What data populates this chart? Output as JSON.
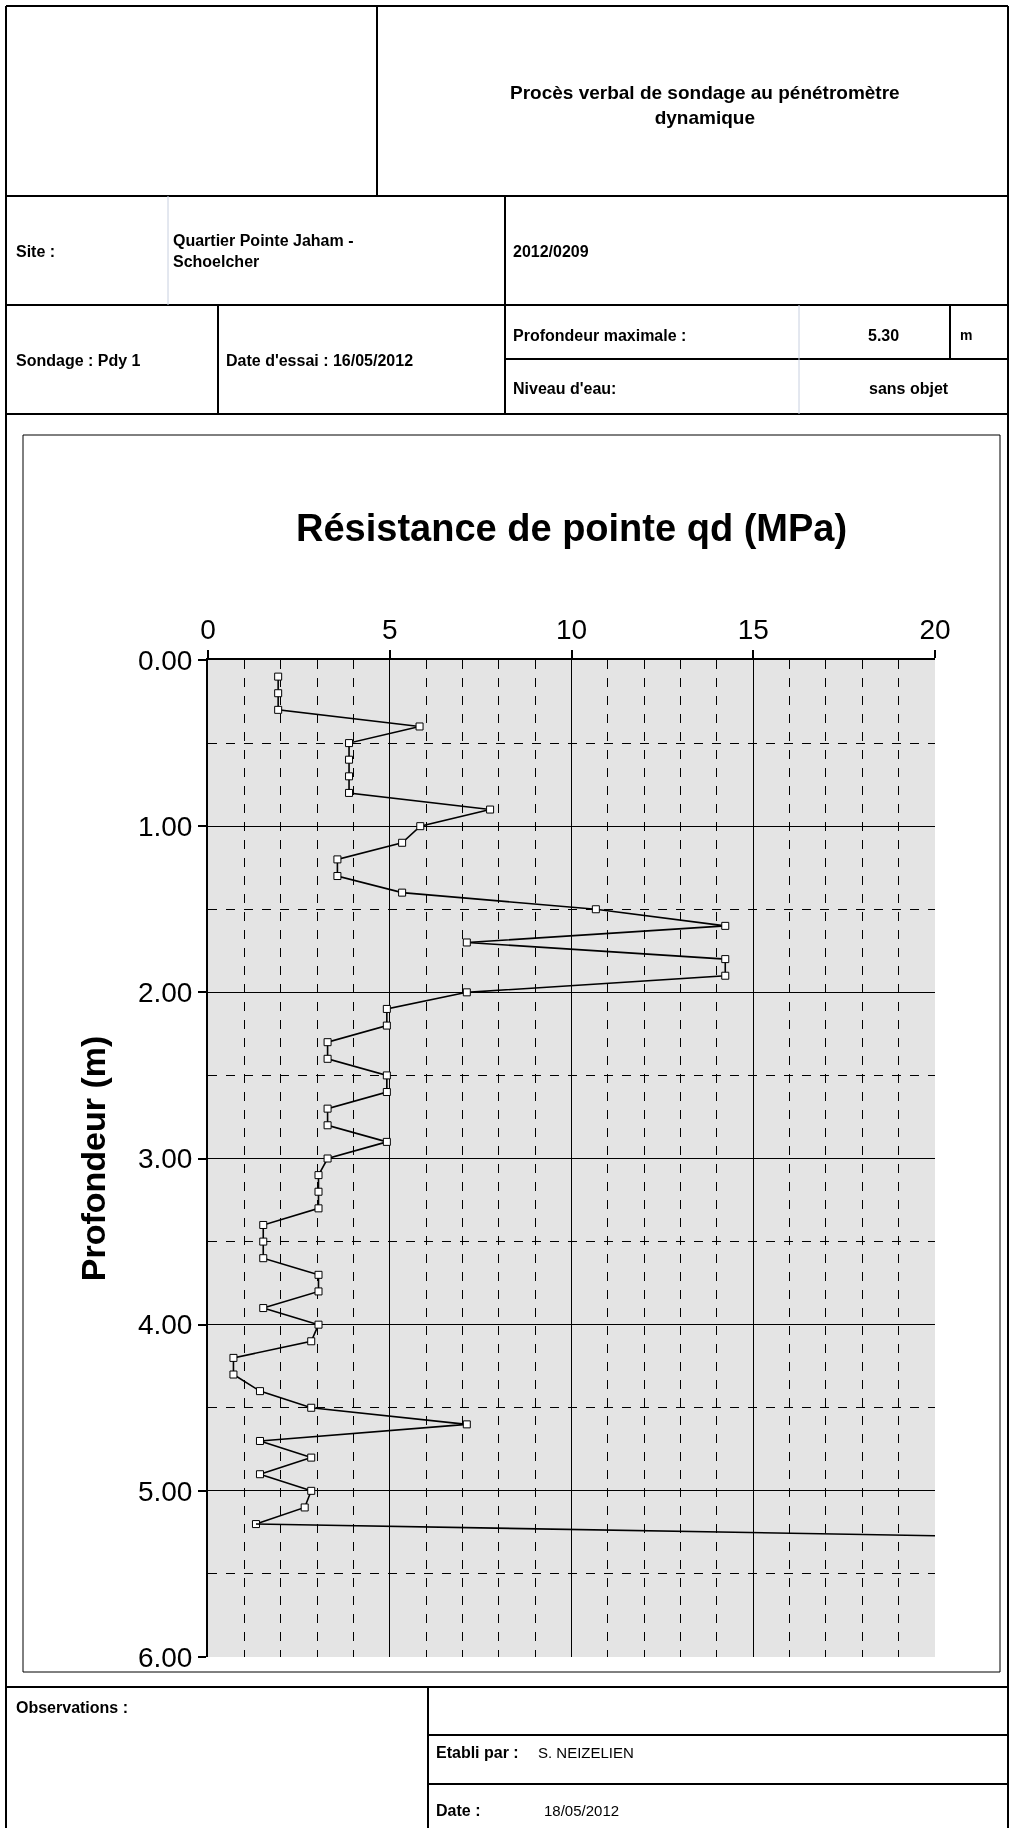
{
  "chart_data": {
    "type": "line",
    "title": "Résistance de pointe qd (MPa)",
    "ylabel": "Profondeur (m)",
    "annotations": [
      "Procès verbal de sondage au pénétromètre dynamique",
      "Site :",
      "Quartier Pointe Jaham - Schoelcher",
      "2012/0209",
      "Sondage : Pdy 1",
      "Date d'essai : 16/05/2012",
      "Profondeur maximale :",
      "5.30",
      "m",
      "Niveau d'eau:",
      "sans objet",
      "Observations :",
      "Etabli par :",
      "S. NEIZELIEN",
      "Date :",
      "18/05/2012"
    ],
    "series": [
      {
        "color": "#000000",
        "marker": "square",
        "x": [
          1.93,
          1.93,
          1.93,
          5.82,
          3.88,
          3.88,
          3.88,
          3.88,
          7.76,
          5.84,
          5.34,
          3.56,
          3.56,
          5.34,
          10.67,
          14.23,
          7.12,
          14.23,
          14.23,
          7.12,
          4.92,
          4.92,
          3.29,
          3.29,
          4.92,
          4.92,
          3.29,
          3.29,
          4.92,
          3.29,
          3.04,
          3.04,
          3.04,
          1.52,
          1.52,
          1.52,
          3.04,
          3.04,
          1.52,
          3.04,
          2.84,
          0.7,
          0.7,
          1.43,
          2.84,
          7.12,
          1.43,
          2.84,
          1.43,
          2.84,
          2.66,
          1.32
        ],
        "values": [
          0.1,
          0.2,
          0.3,
          0.4,
          0.5,
          0.6,
          0.7,
          0.8,
          0.9,
          1.0,
          1.1,
          1.2,
          1.3,
          1.4,
          1.5,
          1.6,
          1.7,
          1.8,
          1.9,
          2.0,
          2.1,
          2.2,
          2.3,
          2.4,
          2.5,
          2.6,
          2.7,
          2.8,
          2.9,
          3.0,
          3.1,
          3.2,
          3.3,
          3.4,
          3.5,
          3.6,
          3.7,
          3.8,
          3.9,
          4.0,
          4.1,
          4.2,
          4.3,
          4.4,
          4.5,
          4.6,
          4.7,
          4.8,
          4.9,
          5.0,
          5.1,
          5.2
        ]
      },
      {
        "color": "#000000",
        "marker": "none",
        "x": [
          1.32,
          20
        ],
        "values": [
          5.2,
          5.27
        ]
      }
    ],
    "xlim": [
      0,
      20
    ],
    "xticks": [
      0,
      {
        "value": 1,
        "label": null
      },
      {
        "value": 2,
        "label": null
      },
      {
        "value": 3,
        "label": null
      },
      {
        "value": 4,
        "label": null
      },
      5,
      {
        "value": 6,
        "label": null
      },
      {
        "value": 7,
        "label": null
      },
      {
        "value": 8,
        "label": null
      },
      {
        "value": 9,
        "label": null
      },
      10,
      {
        "value": 11,
        "label": null
      },
      {
        "value": 12,
        "label": null
      },
      {
        "value": 13,
        "label": null
      },
      {
        "value": 14,
        "label": null
      },
      15,
      {
        "value": 16,
        "label": null
      },
      {
        "value": 17,
        "label": null
      },
      {
        "value": 18,
        "label": null
      },
      {
        "value": 19,
        "label": null
      },
      20
    ],
    "ylim": [
      6,
      0
    ],
    "yticks": [
      {
        "value": 0,
        "label": "0.00"
      },
      {
        "value": 0.5,
        "label": null
      },
      {
        "value": 1,
        "label": "1.00"
      },
      {
        "value": 1.5,
        "label": null
      },
      {
        "value": 2,
        "label": "2.00"
      },
      {
        "value": 2.5,
        "label": null
      },
      {
        "value": 3,
        "label": "3.00"
      },
      {
        "value": 3.5,
        "label": null
      },
      {
        "value": 4,
        "label": "4.00"
      },
      {
        "value": 4.5,
        "label": null
      },
      {
        "value": 5,
        "label": "5.00"
      },
      {
        "value": 5.5,
        "label": null
      },
      {
        "value": 6,
        "label": "6.00"
      }
    ],
    "grid": true,
    "line_style": "solid"
  }
}
